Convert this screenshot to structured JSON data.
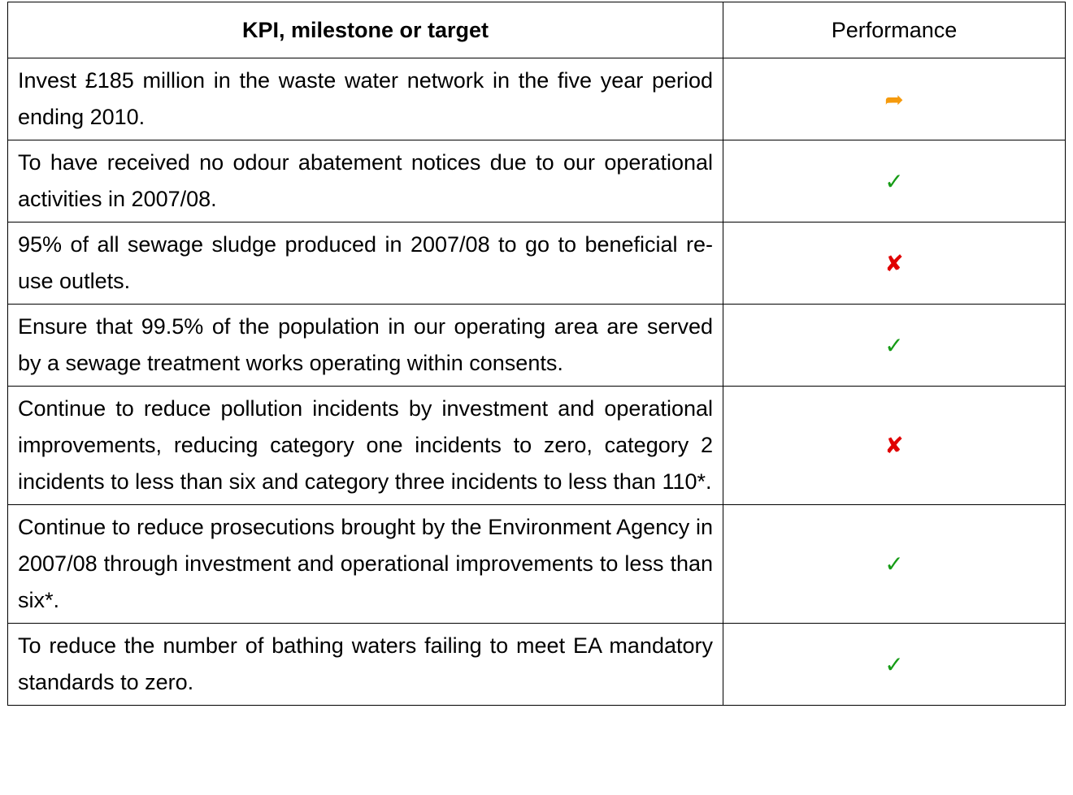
{
  "table": {
    "header": [
      "KPI, milestone or target",
      "Performance"
    ],
    "rows": [
      [
        "Invest £185 million in the waste water network in the five year period ending 2010.",
        "➦"
      ],
      [
        "To have received no odour abatement notices due to our operational activities in 2007/08.",
        "✓"
      ],
      [
        "95% of all sewage sludge produced in 2007/08 to go to beneficial re-use outlets.",
        "✘"
      ],
      [
        "Ensure that 99.5% of the population in our operating area are served by a sewage treatment works operating within consents.",
        "✓"
      ],
      [
        "Continue to reduce pollution incidents by investment and operational improvements, reducing category one incidents to zero, category 2 incidents to less than six and category three incidents to less than 110*.",
        "✘"
      ],
      [
        "Continue to reduce prosecutions brought by the Environment Agency in 2007/08 through investment and operational improvements to less than six*.",
        "✓"
      ],
      [
        "To reduce the number of bathing waters failing to meet EA mandatory standards to zero.",
        "✓"
      ]
    ]
  }
}
